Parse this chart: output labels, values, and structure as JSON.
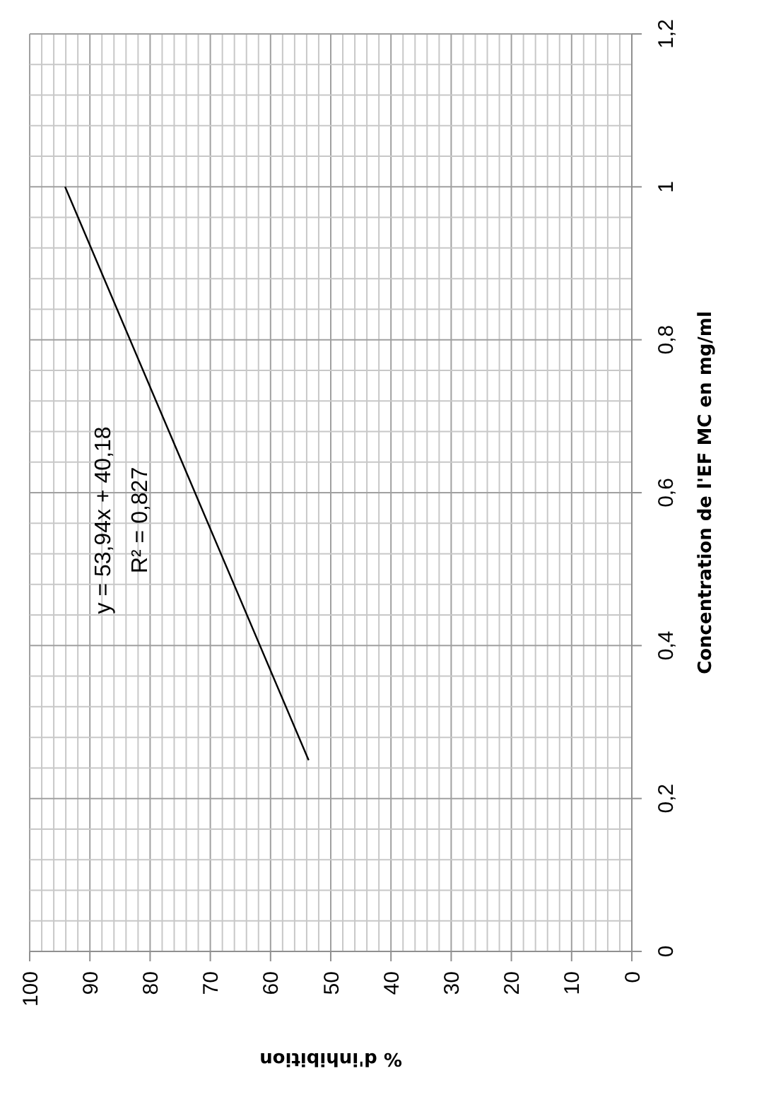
{
  "chart_data": {
    "type": "line",
    "xlabel": "% d'inhibition",
    "ylabel": "Concentration de l'EF MC en mg/ml",
    "x": [
      53.67,
      94.12
    ],
    "series": [
      {
        "color": "#000000",
        "values": [
          0.25,
          1
        ]
      }
    ],
    "xlim": [
      100,
      0
    ],
    "xticks": [
      0,
      10,
      20,
      30,
      40,
      50,
      60,
      70,
      80,
      90,
      100
    ],
    "ylim": [
      0,
      1.2
    ],
    "yticks": [
      {
        "value": 0,
        "label": "0"
      },
      {
        "value": 0.2,
        "label": "0,2"
      },
      {
        "value": 0.4,
        "label": "0,4"
      },
      {
        "value": 0.6,
        "label": "0,6"
      },
      {
        "value": 0.8,
        "label": "0,8"
      },
      {
        "value": 1,
        "label": "1"
      },
      {
        "value": 1.2,
        "label": "1,2"
      }
    ],
    "annotations": [
      "y = 53,94x + 40,18",
      "R² = 0,827"
    ],
    "grid": true,
    "marker": "none",
    "line_style": "solid"
  }
}
